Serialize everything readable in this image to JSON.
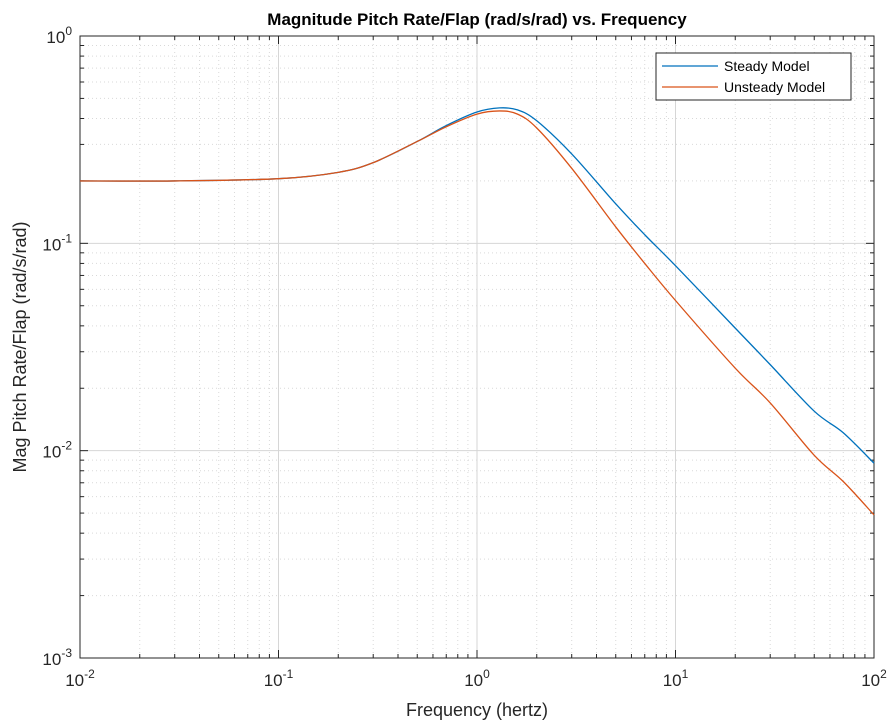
{
  "chart_data": {
    "type": "line",
    "title": "Magnitude Pitch Rate/Flap (rad/s/rad) vs. Frequency",
    "xlabel": "Frequency (hertz)",
    "ylabel": "Mag Pitch Rate/Flap (rad/s/rad)",
    "xscale": "log",
    "yscale": "log",
    "xlim": [
      0.01,
      100
    ],
    "ylim": [
      0.001,
      1
    ],
    "grid": true,
    "minor_grid": true,
    "legend_position": "top-right",
    "x_ticks": [
      {
        "base": "10",
        "exp": "-2"
      },
      {
        "base": "10",
        "exp": "-1"
      },
      {
        "base": "10",
        "exp": "0"
      },
      {
        "base": "10",
        "exp": "1"
      },
      {
        "base": "10",
        "exp": "2"
      }
    ],
    "y_ticks": [
      {
        "base": "10",
        "exp": "-3"
      },
      {
        "base": "10",
        "exp": "-2"
      },
      {
        "base": "10",
        "exp": "-1"
      },
      {
        "base": "10",
        "exp": "0"
      }
    ],
    "series": [
      {
        "name": "Steady Model",
        "color": "#0072BD",
        "x": [
          0.01,
          0.03,
          0.1,
          0.2,
          0.3,
          0.5,
          0.7,
          1.0,
          1.3,
          1.6,
          2.0,
          3.0,
          5.0,
          7.0,
          10,
          20,
          30,
          50,
          70,
          100
        ],
        "y": [
          0.2,
          0.2,
          0.205,
          0.22,
          0.245,
          0.31,
          0.37,
          0.43,
          0.45,
          0.44,
          0.39,
          0.27,
          0.155,
          0.11,
          0.078,
          0.039,
          0.026,
          0.0155,
          0.0122,
          0.0087
        ]
      },
      {
        "name": "Unsteady Model",
        "color": "#D95319",
        "x": [
          0.01,
          0.03,
          0.1,
          0.2,
          0.3,
          0.5,
          0.7,
          1.0,
          1.3,
          1.6,
          2.0,
          3.0,
          5.0,
          7.0,
          10,
          20,
          30,
          50,
          70,
          100
        ],
        "y": [
          0.2,
          0.2,
          0.205,
          0.22,
          0.245,
          0.31,
          0.365,
          0.42,
          0.435,
          0.42,
          0.36,
          0.23,
          0.12,
          0.08,
          0.053,
          0.025,
          0.017,
          0.0095,
          0.0071,
          0.0049
        ]
      }
    ]
  }
}
